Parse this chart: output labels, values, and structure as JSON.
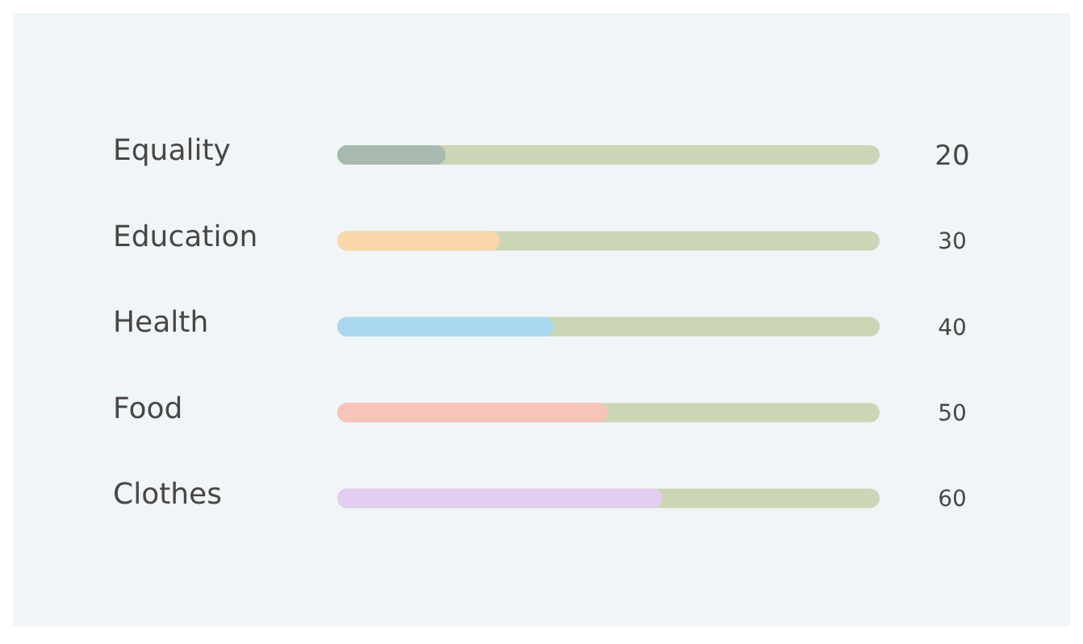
{
  "chart_data": {
    "type": "bar",
    "orientation": "horizontal",
    "categories": [
      "Equality",
      "Education",
      "Health",
      "Food",
      "Clothes"
    ],
    "values": [
      20,
      30,
      40,
      50,
      60
    ],
    "colors": [
      "#a8b9b0",
      "#fbd6a8",
      "#aad8ee",
      "#f6c4b8",
      "#e3cdf1"
    ],
    "xlim": [
      0,
      100
    ],
    "tick_labels": "y",
    "grid": false,
    "legend": false,
    "data_labels": true
  }
}
